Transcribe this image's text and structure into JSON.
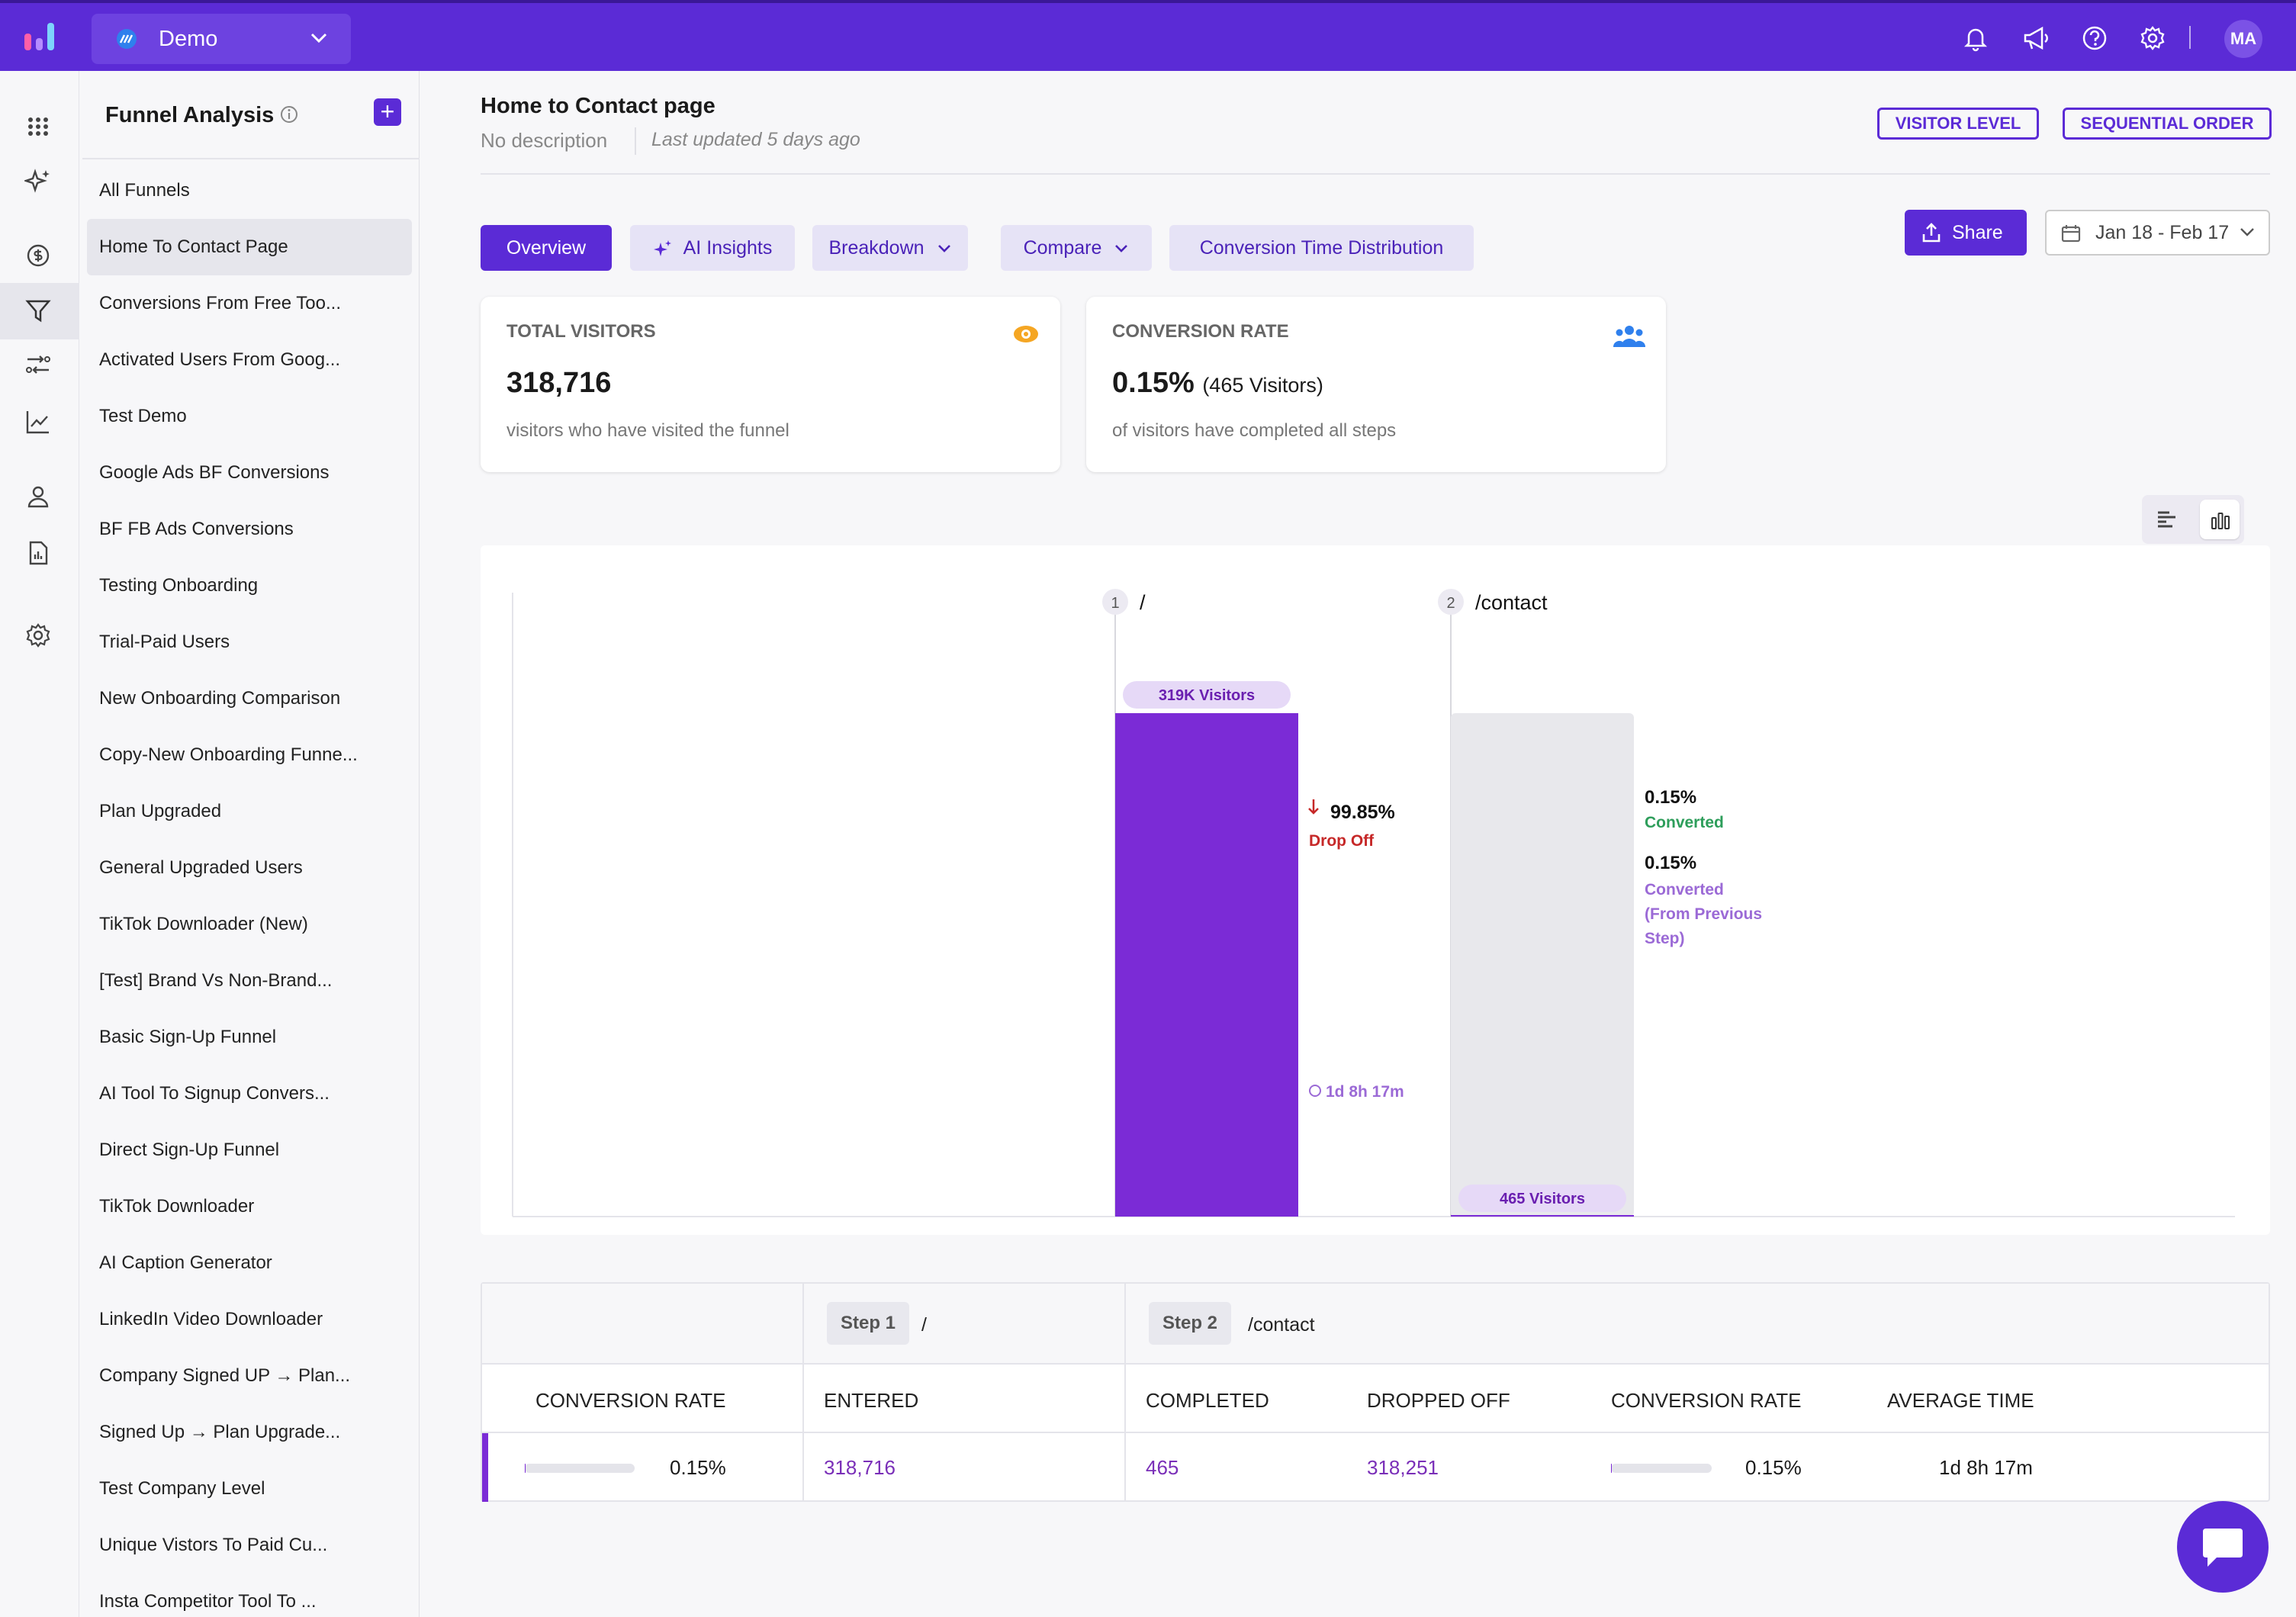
{
  "workspace": {
    "name": "Demo"
  },
  "user": {
    "initials": "MA"
  },
  "sidebar": {
    "title": "Funnel Analysis",
    "items": [
      {
        "label": "All Funnels"
      },
      {
        "label": "Home To Contact Page"
      },
      {
        "label": "Conversions From Free Too..."
      },
      {
        "label": "Activated Users From Goog..."
      },
      {
        "label": "Test Demo"
      },
      {
        "label": "Google Ads BF Conversions"
      },
      {
        "label": "BF FB Ads Conversions"
      },
      {
        "label": "Testing Onboarding"
      },
      {
        "label": "Trial-Paid Users"
      },
      {
        "label": "New Onboarding Comparison"
      },
      {
        "label": "Copy-New Onboarding Funne..."
      },
      {
        "label": "Plan Upgraded"
      },
      {
        "label": "General Upgraded Users"
      },
      {
        "label": "TikTok Downloader (New)"
      },
      {
        "label": "[Test] Brand Vs Non-Brand..."
      },
      {
        "label": "Basic Sign-Up Funnel"
      },
      {
        "label": "AI Tool To Signup Convers..."
      },
      {
        "label": "Direct Sign-Up Funnel"
      },
      {
        "label": "TikTok Downloader"
      },
      {
        "label": "AI Caption Generator"
      },
      {
        "label": "LinkedIn Video Downloader"
      },
      {
        "label": "Company Signed UP → Plan..."
      },
      {
        "label": "Signed Up → Plan Upgrade..."
      },
      {
        "label": "Test Company Level"
      },
      {
        "label": "Unique Vistors To Paid Cu..."
      },
      {
        "label": "Insta Competitor Tool To ..."
      }
    ],
    "selected_index": 1
  },
  "header": {
    "title": "Home to Contact page",
    "description": "No description",
    "updated": "Last updated 5 days ago",
    "level_badge": "VISITOR LEVEL",
    "order_badge": "SEQUENTIAL ORDER"
  },
  "tabs": [
    {
      "label": "Overview",
      "active": true
    },
    {
      "label": "AI Insights"
    },
    {
      "label": "Breakdown"
    },
    {
      "label": "Compare"
    },
    {
      "label": "Conversion Time Distribution"
    }
  ],
  "actions": {
    "share_label": "Share",
    "date_range": "Jan 18 - Feb 17"
  },
  "cards": {
    "visitors": {
      "label": "TOTAL VISITORS",
      "value": "318,716",
      "sub": "visitors who have visited the funnel"
    },
    "conversion": {
      "label": "CONVERSION RATE",
      "value": "0.15%",
      "value_sub": "(465 Visitors)",
      "sub": "of visitors have completed all steps"
    }
  },
  "chart_data": {
    "type": "bar",
    "categories": [
      "/",
      "/contact"
    ],
    "values": [
      318716,
      465
    ],
    "steps": [
      {
        "num": "1",
        "name": "/",
        "badge": "319K Visitors"
      },
      {
        "num": "2",
        "name": "/contact",
        "badge": "465 Visitors"
      }
    ],
    "dropoff": {
      "pct": "99.85%",
      "label": "Drop Off",
      "time": "1d 8h 17m"
    },
    "converted": {
      "pct": "0.15%",
      "label": "Converted"
    },
    "converted_prev": {
      "pct": "0.15%",
      "label_lines": [
        "Converted",
        "(From Previous",
        "Step)"
      ]
    },
    "colors": {
      "bar": "#7b2bd6",
      "remainder": "#e8e8ec",
      "badge": "#e6d9f7",
      "drop": "#c62828",
      "converted": "#2e9e5b",
      "prev": "#9b6ad6"
    }
  },
  "table": {
    "step1_tag": "Step 1",
    "step1_name": "/",
    "step2_tag": "Step 2",
    "step2_name": "/contact",
    "headers": [
      "CONVERSION RATE",
      "ENTERED",
      "COMPLETED",
      "DROPPED OFF",
      "CONVERSION RATE",
      "AVERAGE TIME"
    ],
    "row": {
      "conv_rate": "0.15%",
      "entered": "318,716",
      "completed": "465",
      "dropped": "318,251",
      "conv_rate2": "0.15%",
      "avg_time": "1d 8h 17m",
      "conv_fraction": 0.0015
    }
  }
}
